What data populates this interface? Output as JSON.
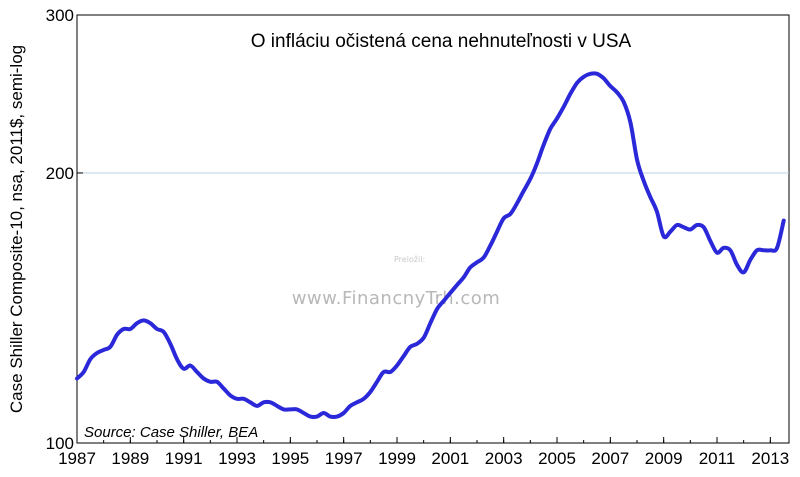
{
  "chart_data": {
    "type": "line",
    "title": "O infláciu očistená cena nehnuteľnosti v USA",
    "ylabel": "Case Shiller Composite-10, nsa, 2011$, semi-log",
    "xlabel": "",
    "source": "Source: Case Shiller, BEA",
    "y_scale": "log",
    "ylim": [
      100,
      300
    ],
    "xlim": [
      1987,
      2013.7
    ],
    "y_ticks": [
      "100",
      "200",
      "300"
    ],
    "x_ticks": [
      "1987",
      "1989",
      "1991",
      "1993",
      "1995",
      "1997",
      "1999",
      "2001",
      "2003",
      "2005",
      "2007",
      "2009",
      "2011",
      "2013"
    ],
    "gridlines": [
      200
    ],
    "legend": "none",
    "series": [
      {
        "color": "#2a28d8",
        "x": [
          1987.0,
          1987.25,
          1987.5,
          1987.75,
          1988.0,
          1988.25,
          1988.5,
          1988.75,
          1989.0,
          1989.25,
          1989.5,
          1989.75,
          1990.0,
          1990.25,
          1990.5,
          1990.75,
          1991.0,
          1991.25,
          1991.5,
          1991.75,
          1992.0,
          1992.25,
          1992.5,
          1992.75,
          1993.0,
          1993.25,
          1993.5,
          1993.75,
          1994.0,
          1994.25,
          1994.5,
          1994.75,
          1995.0,
          1995.25,
          1995.5,
          1995.75,
          1996.0,
          1996.25,
          1996.5,
          1996.75,
          1997.0,
          1997.25,
          1997.5,
          1997.75,
          1998.0,
          1998.25,
          1998.5,
          1998.75,
          1999.0,
          1999.25,
          1999.5,
          1999.75,
          2000.0,
          2000.25,
          2000.5,
          2000.75,
          2001.0,
          2001.25,
          2001.5,
          2001.75,
          2002.0,
          2002.25,
          2002.5,
          2002.75,
          2003.0,
          2003.25,
          2003.5,
          2003.75,
          2004.0,
          2004.25,
          2004.5,
          2004.75,
          2005.0,
          2005.25,
          2005.5,
          2005.75,
          2006.0,
          2006.25,
          2006.5,
          2006.75,
          2007.0,
          2007.25,
          2007.5,
          2007.75,
          2008.0,
          2008.25,
          2008.5,
          2008.75,
          2009.0,
          2009.25,
          2009.5,
          2009.75,
          2010.0,
          2010.25,
          2010.5,
          2010.75,
          2011.0,
          2011.25,
          2011.5,
          2011.75,
          2012.0,
          2012.25,
          2012.5,
          2012.75,
          2013.0,
          2013.25,
          2013.5
        ],
        "y": [
          118,
          120,
          124,
          126,
          127,
          128,
          132,
          134,
          134,
          136,
          137,
          136,
          134,
          133,
          129,
          124,
          121,
          122,
          120,
          118,
          117,
          117,
          115,
          113,
          112,
          112,
          111,
          110,
          111,
          111,
          110,
          109,
          109,
          109,
          108,
          107,
          107,
          108,
          107,
          107,
          108,
          110,
          111,
          112,
          114,
          117,
          120,
          120,
          122,
          125,
          128,
          129,
          131,
          136,
          141,
          144,
          147,
          150,
          153,
          157,
          159,
          161,
          166,
          172,
          178,
          180,
          185,
          191,
          197,
          205,
          215,
          224,
          230,
          237,
          245,
          252,
          256,
          258,
          258,
          255,
          250,
          246,
          240,
          228,
          207,
          196,
          188,
          181,
          170,
          172,
          175,
          174,
          173,
          175,
          174,
          168,
          163,
          165,
          164,
          158,
          155,
          160,
          164,
          164,
          164,
          165,
          177
        ]
      }
    ]
  },
  "watermark": {
    "main": "www.FinancnyTrh.com",
    "small": "Preložil:"
  }
}
